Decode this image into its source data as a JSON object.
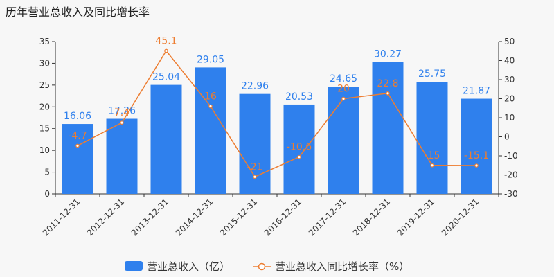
{
  "title": "历年营业总收入及同比增长率",
  "chart_data": {
    "type": "bar",
    "title": "历年营业总收入及同比增长率",
    "categories": [
      "2011-12-31",
      "2012-12-31",
      "2013-12-31",
      "2014-12-31",
      "2015-12-31",
      "2016-12-31",
      "2017-12-31",
      "2018-12-31",
      "2019-12-31",
      "2020-12-31"
    ],
    "series": [
      {
        "name": "营业总收入（亿）",
        "type": "bar",
        "axis": "left",
        "color": "#2f80ed",
        "values": [
          16.06,
          17.26,
          25.04,
          29.05,
          22.96,
          20.53,
          24.65,
          30.27,
          25.75,
          21.87
        ],
        "labels": [
          "16.06",
          "17.26",
          "25.04",
          "29.05",
          "22.96",
          "20.53",
          "24.65",
          "30.27",
          "25.75",
          "21.87"
        ]
      },
      {
        "name": "营业总收入同比增长率（%）",
        "type": "line",
        "axis": "right",
        "color": "#ed7d31",
        "values": [
          -4.7,
          7.4,
          45.1,
          16,
          -21,
          -10.6,
          20,
          22.8,
          -15,
          -15.1
        ],
        "labels": [
          "-4.7",
          "7.4",
          "45.1",
          "16",
          "-21",
          "-10.6",
          "20",
          "22.8",
          "-15",
          "-15.1"
        ]
      }
    ],
    "y_left": {
      "range": [
        0,
        35
      ],
      "ticks": [
        "0",
        "5",
        "10",
        "15",
        "20",
        "25",
        "30",
        "35"
      ]
    },
    "y_right": {
      "range": [
        -30,
        50
      ],
      "ticks": [
        "-30",
        "-20",
        "-10",
        "0",
        "10",
        "20",
        "30",
        "40",
        "50"
      ]
    },
    "grid": false,
    "legend": "bottom-center"
  }
}
